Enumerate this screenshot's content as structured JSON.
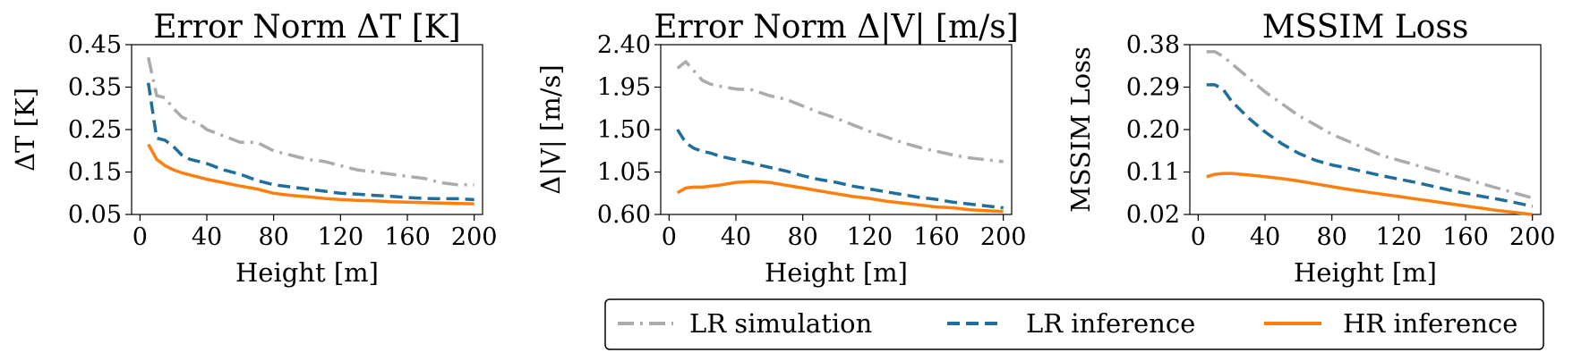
{
  "series_styles": [
    {
      "key": "lr_sim",
      "color": "#ababab",
      "dash": "18 7 3 7"
    },
    {
      "key": "lr_inf",
      "color": "#1f6e9c",
      "dash": "14 7"
    },
    {
      "key": "hr_inf",
      "color": "#ff7f0e",
      "dash": ""
    }
  ],
  "legend": {
    "items": [
      "LR simulation",
      "LR inference",
      "HR inference"
    ]
  },
  "chart_data": [
    {
      "type": "line",
      "title": "Error Norm ΔT [K]",
      "xlabel": "Height [m]",
      "ylabel": "ΔT [K]",
      "xlim": [
        -5,
        205
      ],
      "ylim": [
        0.05,
        0.45
      ],
      "xticks": [
        0,
        40,
        80,
        120,
        160,
        200
      ],
      "xtick_labels": [
        "0",
        "40",
        "80",
        "120",
        "160",
        "200"
      ],
      "yticks": [
        0.05,
        0.15,
        0.25,
        0.35,
        0.45
      ],
      "ytick_labels": [
        "0.05",
        "0.15",
        "0.25",
        "0.35",
        "0.45"
      ],
      "grid": false,
      "series": [
        {
          "key": "lr_sim",
          "x": [
            5,
            10,
            15,
            20,
            25,
            30,
            35,
            40,
            50,
            60,
            70,
            80,
            90,
            100,
            110,
            120,
            130,
            140,
            150,
            160,
            170,
            180,
            190,
            200
          ],
          "values": [
            0.42,
            0.33,
            0.325,
            0.3,
            0.28,
            0.27,
            0.265,
            0.25,
            0.235,
            0.22,
            0.22,
            0.2,
            0.19,
            0.18,
            0.175,
            0.165,
            0.155,
            0.15,
            0.145,
            0.14,
            0.135,
            0.125,
            0.12,
            0.12
          ]
        },
        {
          "key": "lr_inf",
          "x": [
            5,
            10,
            15,
            20,
            25,
            30,
            40,
            50,
            60,
            70,
            80,
            90,
            100,
            110,
            120,
            130,
            140,
            150,
            160,
            170,
            180,
            190,
            200
          ],
          "values": [
            0.36,
            0.23,
            0.225,
            0.21,
            0.19,
            0.18,
            0.17,
            0.155,
            0.145,
            0.13,
            0.12,
            0.115,
            0.11,
            0.105,
            0.1,
            0.098,
            0.095,
            0.093,
            0.09,
            0.088,
            0.087,
            0.087,
            0.085
          ]
        },
        {
          "key": "hr_inf",
          "x": [
            5,
            10,
            15,
            20,
            25,
            30,
            40,
            50,
            60,
            70,
            80,
            90,
            100,
            110,
            120,
            130,
            140,
            150,
            160,
            170,
            180,
            190,
            200
          ],
          "values": [
            0.215,
            0.18,
            0.165,
            0.155,
            0.148,
            0.143,
            0.133,
            0.125,
            0.117,
            0.11,
            0.1,
            0.095,
            0.092,
            0.088,
            0.085,
            0.083,
            0.082,
            0.08,
            0.079,
            0.078,
            0.077,
            0.076,
            0.075
          ]
        }
      ]
    },
    {
      "type": "line",
      "title": "Error Norm Δ|V| [m/s]",
      "xlabel": "Height [m]",
      "ylabel": "Δ|V| [m/s]",
      "xlim": [
        -5,
        205
      ],
      "ylim": [
        0.6,
        2.4
      ],
      "xticks": [
        0,
        40,
        80,
        120,
        160,
        200
      ],
      "xtick_labels": [
        "0",
        "40",
        "80",
        "120",
        "160",
        "200"
      ],
      "yticks": [
        0.6,
        1.05,
        1.5,
        1.95,
        2.4
      ],
      "ytick_labels": [
        "0.60",
        "1.05",
        "1.50",
        "1.95",
        "2.40"
      ],
      "grid": false,
      "series": [
        {
          "key": "lr_sim",
          "x": [
            5,
            10,
            15,
            20,
            25,
            30,
            40,
            50,
            60,
            70,
            80,
            90,
            100,
            110,
            120,
            130,
            140,
            150,
            160,
            170,
            180,
            190,
            200
          ],
          "values": [
            2.15,
            2.22,
            2.12,
            2.02,
            1.98,
            1.96,
            1.93,
            1.92,
            1.86,
            1.82,
            1.75,
            1.68,
            1.62,
            1.55,
            1.48,
            1.42,
            1.36,
            1.31,
            1.27,
            1.23,
            1.2,
            1.18,
            1.16
          ]
        },
        {
          "key": "lr_inf",
          "x": [
            5,
            10,
            15,
            20,
            25,
            30,
            40,
            50,
            60,
            70,
            80,
            90,
            100,
            110,
            120,
            130,
            140,
            150,
            160,
            170,
            180,
            190,
            200
          ],
          "values": [
            1.5,
            1.36,
            1.3,
            1.27,
            1.25,
            1.22,
            1.18,
            1.14,
            1.1,
            1.06,
            1.01,
            0.97,
            0.94,
            0.9,
            0.87,
            0.84,
            0.81,
            0.78,
            0.76,
            0.73,
            0.71,
            0.69,
            0.67
          ]
        },
        {
          "key": "hr_inf",
          "x": [
            5,
            10,
            15,
            20,
            25,
            30,
            40,
            50,
            60,
            70,
            80,
            90,
            100,
            110,
            120,
            130,
            140,
            150,
            160,
            170,
            180,
            190,
            200
          ],
          "values": [
            0.83,
            0.88,
            0.89,
            0.89,
            0.9,
            0.91,
            0.94,
            0.95,
            0.94,
            0.91,
            0.88,
            0.85,
            0.82,
            0.79,
            0.77,
            0.74,
            0.72,
            0.7,
            0.68,
            0.67,
            0.65,
            0.64,
            0.63
          ]
        }
      ]
    },
    {
      "type": "line",
      "title": "MSSIM Loss",
      "xlabel": "Height [m]",
      "ylabel": "MSSIM Loss",
      "xlim": [
        -5,
        205
      ],
      "ylim": [
        0.02,
        0.38
      ],
      "xticks": [
        0,
        40,
        80,
        120,
        160,
        200
      ],
      "xtick_labels": [
        "0",
        "40",
        "80",
        "120",
        "160",
        "200"
      ],
      "yticks": [
        0.02,
        0.11,
        0.2,
        0.29,
        0.38
      ],
      "ytick_labels": [
        "0.02",
        "0.11",
        "0.20",
        "0.29",
        "0.38"
      ],
      "grid": false,
      "series": [
        {
          "key": "lr_sim",
          "x": [
            5,
            10,
            15,
            20,
            30,
            40,
            50,
            60,
            70,
            80,
            90,
            100,
            110,
            120,
            130,
            140,
            150,
            160,
            170,
            180,
            190,
            200
          ],
          "values": [
            0.365,
            0.365,
            0.355,
            0.34,
            0.31,
            0.28,
            0.255,
            0.23,
            0.21,
            0.19,
            0.175,
            0.16,
            0.145,
            0.135,
            0.125,
            0.115,
            0.105,
            0.095,
            0.085,
            0.075,
            0.065,
            0.055
          ]
        },
        {
          "key": "lr_inf",
          "x": [
            5,
            10,
            15,
            20,
            30,
            40,
            50,
            60,
            70,
            80,
            90,
            100,
            110,
            120,
            130,
            140,
            150,
            160,
            170,
            180,
            190,
            200
          ],
          "values": [
            0.295,
            0.295,
            0.285,
            0.26,
            0.225,
            0.195,
            0.17,
            0.15,
            0.135,
            0.125,
            0.118,
            0.11,
            0.102,
            0.095,
            0.088,
            0.08,
            0.072,
            0.065,
            0.058,
            0.052,
            0.045,
            0.037
          ]
        },
        {
          "key": "hr_inf",
          "x": [
            5,
            10,
            15,
            20,
            30,
            40,
            50,
            60,
            70,
            80,
            90,
            100,
            110,
            120,
            130,
            140,
            150,
            160,
            170,
            180,
            190,
            200
          ],
          "values": [
            0.1,
            0.105,
            0.107,
            0.107,
            0.104,
            0.1,
            0.096,
            0.091,
            0.085,
            0.079,
            0.073,
            0.068,
            0.063,
            0.058,
            0.053,
            0.048,
            0.043,
            0.038,
            0.033,
            0.028,
            0.024,
            0.02
          ]
        }
      ]
    }
  ]
}
